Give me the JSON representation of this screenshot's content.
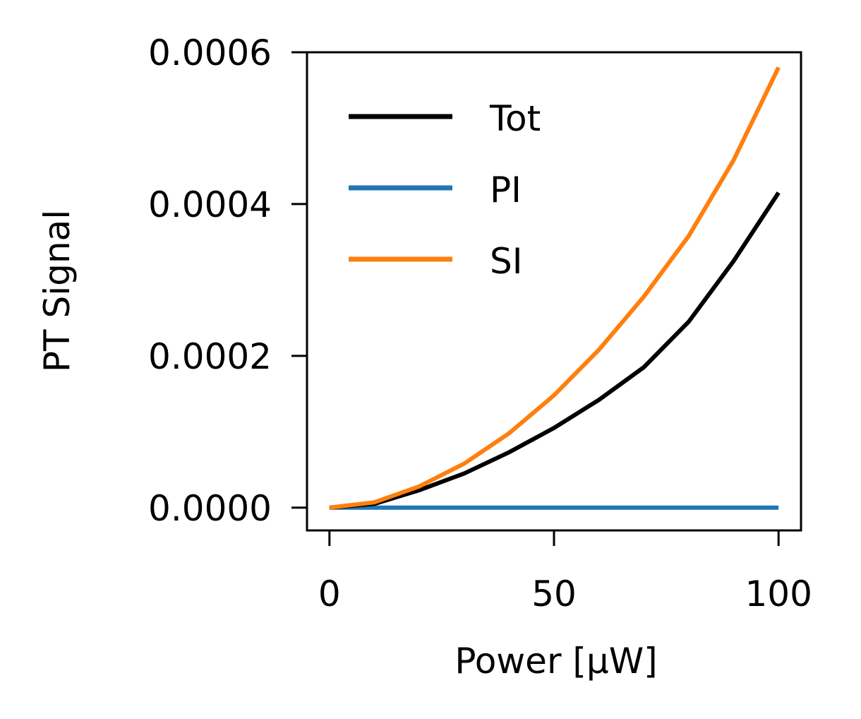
{
  "chart_data": {
    "type": "line",
    "xlabel": "Power [μW]",
    "ylabel": "PT Signal",
    "xlim": [
      -5,
      105
    ],
    "ylim": [
      -3e-05,
      0.0006
    ],
    "xticks": [
      0,
      50,
      100
    ],
    "xtick_labels": [
      "0",
      "50",
      "100"
    ],
    "yticks": [
      0,
      0.0002,
      0.0004,
      0.0006
    ],
    "ytick_labels": [
      "0.0000",
      "0.0002",
      "0.0004",
      "0.0006"
    ],
    "grid": false,
    "legend_position": "top-left",
    "series": [
      {
        "name": "Tot",
        "color": "#000000",
        "x": [
          0,
          10,
          20,
          30,
          40,
          50,
          60,
          70,
          80,
          90,
          100
        ],
        "y": [
          0,
          5e-06,
          2.3e-05,
          4.5e-05,
          7.3e-05,
          0.000105,
          0.000142,
          0.000185,
          0.000245,
          0.000325,
          0.000415
        ]
      },
      {
        "name": "PI",
        "color": "#1f77b4",
        "x": [
          0,
          10,
          20,
          30,
          40,
          50,
          60,
          70,
          80,
          90,
          100
        ],
        "y": [
          0,
          0,
          0,
          0,
          0,
          0,
          0,
          0,
          0,
          0,
          0
        ]
      },
      {
        "name": "SI",
        "color": "#ff7f0e",
        "x": [
          0,
          10,
          20,
          30,
          40,
          50,
          60,
          70,
          80,
          90,
          100
        ],
        "y": [
          0,
          7e-06,
          2.8e-05,
          5.8e-05,
          9.8e-05,
          0.000148,
          0.000208,
          0.000278,
          0.000358,
          0.000458,
          0.00058
        ]
      }
    ]
  }
}
